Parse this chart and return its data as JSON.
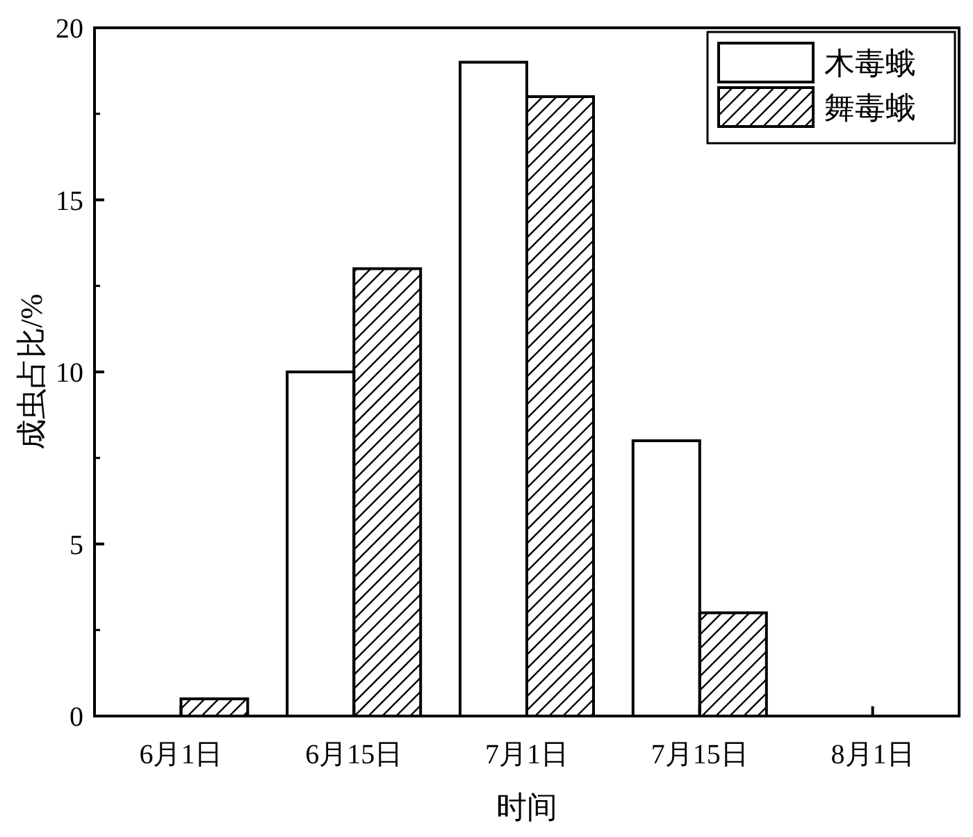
{
  "chart_data": {
    "type": "bar",
    "xlabel": "时间",
    "ylabel": "成虫占比/%",
    "categories": [
      "6月1日",
      "6月15日",
      "7月1日",
      "7月15日",
      "8月1日"
    ],
    "series": [
      {
        "name": "木毒蛾",
        "color": "#ffffff",
        "values": [
          0,
          10,
          19,
          8,
          0
        ]
      },
      {
        "name": "舞毒蛾",
        "color": "#ffffff",
        "values": [
          0.5,
          13,
          18,
          3,
          0
        ]
      }
    ],
    "ylim": [
      0,
      20
    ],
    "yticks": [
      0,
      5,
      10,
      15,
      20
    ],
    "grid": false,
    "legend": "top right"
  }
}
